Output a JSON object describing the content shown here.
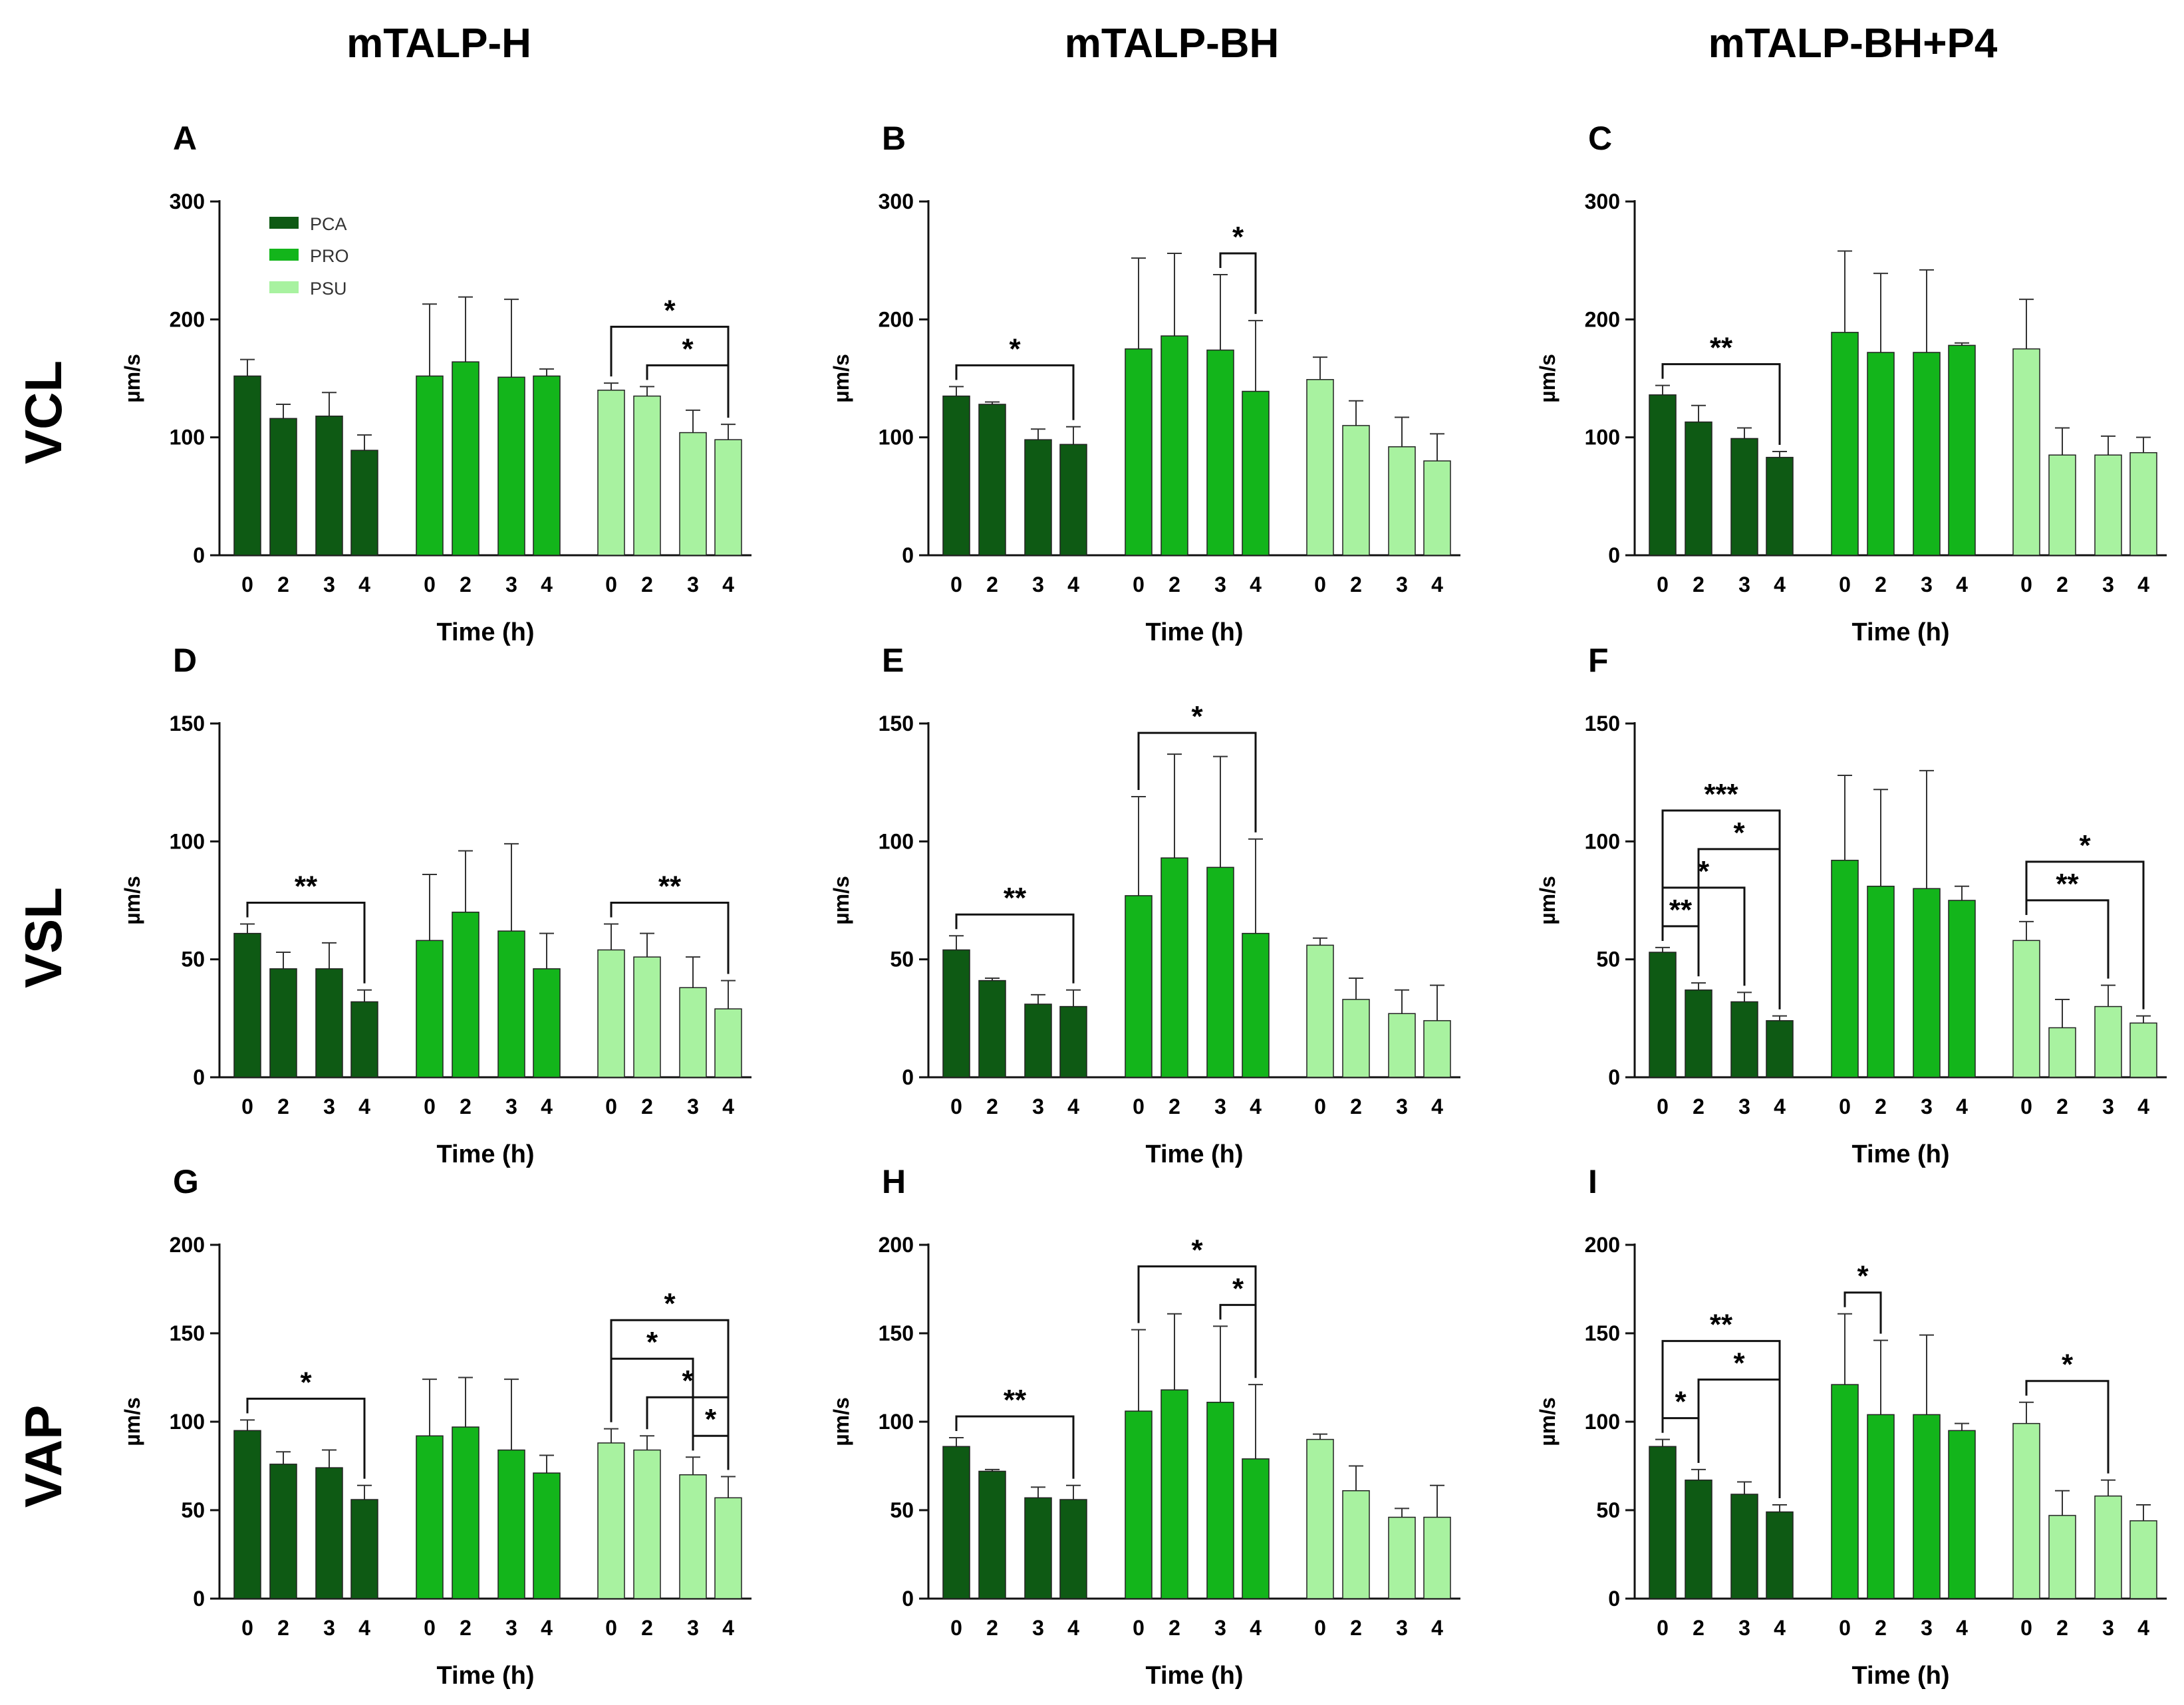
{
  "colors": {
    "PCA": "#0e5a14",
    "PRO": "#13b51b",
    "PSU": "#a8f2a0"
  },
  "column_titles": [
    "mTALP-H",
    "mTALP-BH",
    "mTALP-BH+P4"
  ],
  "row_labels": [
    "VCL",
    "VSL",
    "VAP"
  ],
  "legend": [
    "PCA",
    "PRO",
    "PSU"
  ],
  "chart_data": [
    {
      "panel": "A",
      "type": "bar",
      "metric": "VCL",
      "medium": "mTALP-H",
      "ylabel": "µm/s",
      "xlabel": "Time (h)",
      "ylim": [
        0,
        300
      ],
      "yticks": [
        0,
        100,
        200,
        300
      ],
      "categories": [
        "0",
        "2",
        "3",
        "4"
      ],
      "series": [
        {
          "name": "PCA",
          "values": [
            152,
            116,
            118,
            89
          ],
          "errors": [
            14,
            12,
            20,
            13
          ]
        },
        {
          "name": "PRO",
          "values": [
            152,
            164,
            151,
            152
          ],
          "errors": [
            61,
            55,
            66,
            6
          ]
        },
        {
          "name": "PSU",
          "values": [
            140,
            135,
            104,
            98
          ],
          "errors": [
            6,
            8,
            19,
            13
          ]
        }
      ],
      "significance": [
        {
          "series": "PSU",
          "from": "0",
          "to": "4",
          "label": "*"
        },
        {
          "series": "PSU",
          "from": "2",
          "to": "4",
          "label": "*"
        }
      ]
    },
    {
      "panel": "B",
      "type": "bar",
      "metric": "VCL",
      "medium": "mTALP-BH",
      "ylabel": "µm/s",
      "xlabel": "Time (h)",
      "ylim": [
        0,
        300
      ],
      "yticks": [
        0,
        100,
        200,
        300
      ],
      "categories": [
        "0",
        "2",
        "3",
        "4"
      ],
      "series": [
        {
          "name": "PCA",
          "values": [
            135,
            128,
            98,
            94
          ],
          "errors": [
            8,
            2,
            9,
            15
          ]
        },
        {
          "name": "PRO",
          "values": [
            175,
            186,
            174,
            139
          ],
          "errors": [
            77,
            70,
            64,
            60
          ]
        },
        {
          "name": "PSU",
          "values": [
            149,
            110,
            92,
            80
          ],
          "errors": [
            19,
            21,
            25,
            23
          ]
        }
      ],
      "significance": [
        {
          "series": "PCA",
          "from": "0",
          "to": "4",
          "label": "*"
        },
        {
          "series": "PRO",
          "from": "3",
          "to": "4",
          "label": "*"
        }
      ]
    },
    {
      "panel": "C",
      "type": "bar",
      "metric": "VCL",
      "medium": "mTALP-BH+P4",
      "ylabel": "µm/s",
      "xlabel": "Time (h)",
      "ylim": [
        0,
        300
      ],
      "yticks": [
        0,
        100,
        200,
        300
      ],
      "categories": [
        "0",
        "2",
        "3",
        "4"
      ],
      "series": [
        {
          "name": "PCA",
          "values": [
            136,
            113,
            99,
            83
          ],
          "errors": [
            8,
            14,
            9,
            5
          ]
        },
        {
          "name": "PRO",
          "values": [
            189,
            172,
            172,
            178
          ],
          "errors": [
            69,
            67,
            70,
            2
          ]
        },
        {
          "name": "PSU",
          "values": [
            175,
            85,
            85,
            87
          ],
          "errors": [
            42,
            23,
            16,
            13
          ]
        }
      ],
      "significance": [
        {
          "series": "PCA",
          "from": "0",
          "to": "4",
          "label": "**"
        }
      ]
    },
    {
      "panel": "D",
      "type": "bar",
      "metric": "VSL",
      "medium": "mTALP-H",
      "ylabel": "µm/s",
      "xlabel": "Time (h)",
      "ylim": [
        0,
        150
      ],
      "yticks": [
        0,
        50,
        100,
        150
      ],
      "categories": [
        "0",
        "2",
        "3",
        "4"
      ],
      "series": [
        {
          "name": "PCA",
          "values": [
            61,
            46,
            46,
            32
          ],
          "errors": [
            4,
            7,
            11,
            5
          ]
        },
        {
          "name": "PRO",
          "values": [
            58,
            70,
            62,
            46
          ],
          "errors": [
            28,
            26,
            37,
            15
          ]
        },
        {
          "name": "PSU",
          "values": [
            54,
            51,
            38,
            29
          ],
          "errors": [
            11,
            10,
            13,
            12
          ]
        }
      ],
      "significance": [
        {
          "series": "PCA",
          "from": "0",
          "to": "4",
          "label": "**"
        },
        {
          "series": "PSU",
          "from": "0",
          "to": "4",
          "label": "**"
        }
      ]
    },
    {
      "panel": "E",
      "type": "bar",
      "metric": "VSL",
      "medium": "mTALP-BH",
      "ylabel": "µm/s",
      "xlabel": "Time (h)",
      "ylim": [
        0,
        150
      ],
      "yticks": [
        0,
        50,
        100,
        150
      ],
      "categories": [
        "0",
        "2",
        "3",
        "4"
      ],
      "series": [
        {
          "name": "PCA",
          "values": [
            54,
            41,
            31,
            30
          ],
          "errors": [
            6,
            1,
            4,
            7
          ]
        },
        {
          "name": "PRO",
          "values": [
            77,
            93,
            89,
            61
          ],
          "errors": [
            42,
            44,
            47,
            40
          ]
        },
        {
          "name": "PSU",
          "values": [
            56,
            33,
            27,
            24
          ],
          "errors": [
            3,
            9,
            10,
            15
          ]
        }
      ],
      "significance": [
        {
          "series": "PCA",
          "from": "0",
          "to": "4",
          "label": "**"
        },
        {
          "series": "PRO",
          "from": "0",
          "to": "4",
          "label": "*"
        }
      ]
    },
    {
      "panel": "F",
      "type": "bar",
      "metric": "VSL",
      "medium": "mTALP-BH+P4",
      "ylabel": "µm/s",
      "xlabel": "Time (h)",
      "ylim": [
        0,
        150
      ],
      "yticks": [
        0,
        50,
        100,
        150
      ],
      "categories": [
        "0",
        "2",
        "3",
        "4"
      ],
      "series": [
        {
          "name": "PCA",
          "values": [
            53,
            37,
            32,
            24
          ],
          "errors": [
            2,
            3,
            4,
            2
          ]
        },
        {
          "name": "PRO",
          "values": [
            92,
            81,
            80,
            75
          ],
          "errors": [
            36,
            41,
            50,
            6
          ]
        },
        {
          "name": "PSU",
          "values": [
            58,
            21,
            30,
            23
          ],
          "errors": [
            8,
            12,
            9,
            3
          ]
        }
      ],
      "significance": [
        {
          "series": "PCA",
          "from": "0",
          "to": "4",
          "label": "***"
        },
        {
          "series": "PCA",
          "from": "0",
          "to": "3",
          "label": "*"
        },
        {
          "series": "PCA",
          "from": "0",
          "to": "2",
          "label": "**"
        },
        {
          "series": "PCA",
          "from": "2",
          "to": "4",
          "label": "*"
        },
        {
          "series": "PSU",
          "from": "0",
          "to": "4",
          "label": "*"
        },
        {
          "series": "PSU",
          "from": "0",
          "to": "3",
          "label": "**"
        }
      ]
    },
    {
      "panel": "G",
      "type": "bar",
      "metric": "VAP",
      "medium": "mTALP-H",
      "ylabel": "µm/s",
      "xlabel": "Time (h)",
      "ylim": [
        0,
        200
      ],
      "yticks": [
        0,
        50,
        100,
        150,
        200
      ],
      "categories": [
        "0",
        "2",
        "3",
        "4"
      ],
      "series": [
        {
          "name": "PCA",
          "values": [
            95,
            76,
            74,
            56
          ],
          "errors": [
            6,
            7,
            10,
            8
          ]
        },
        {
          "name": "PRO",
          "values": [
            92,
            97,
            84,
            71
          ],
          "errors": [
            32,
            28,
            40,
            10
          ]
        },
        {
          "name": "PSU",
          "values": [
            88,
            84,
            70,
            57
          ],
          "errors": [
            8,
            8,
            10,
            12
          ]
        }
      ],
      "significance": [
        {
          "series": "PCA",
          "from": "0",
          "to": "4",
          "label": "*"
        },
        {
          "series": "PSU",
          "from": "0",
          "to": "4",
          "label": "*"
        },
        {
          "series": "PSU",
          "from": "2",
          "to": "4",
          "label": "*"
        },
        {
          "series": "PSU",
          "from": "0",
          "to": "3",
          "label": "*"
        },
        {
          "series": "PSU",
          "from": "3",
          "to": "4",
          "label": "*"
        }
      ]
    },
    {
      "panel": "H",
      "type": "bar",
      "metric": "VAP",
      "medium": "mTALP-BH",
      "ylabel": "µm/s",
      "xlabel": "Time (h)",
      "ylim": [
        0,
        200
      ],
      "yticks": [
        0,
        50,
        100,
        150,
        200
      ],
      "categories": [
        "0",
        "2",
        "3",
        "4"
      ],
      "series": [
        {
          "name": "PCA",
          "values": [
            86,
            72,
            57,
            56
          ],
          "errors": [
            5,
            1,
            6,
            8
          ]
        },
        {
          "name": "PRO",
          "values": [
            106,
            118,
            111,
            79
          ],
          "errors": [
            46,
            43,
            43,
            42
          ]
        },
        {
          "name": "PSU",
          "values": [
            90,
            61,
            46,
            46
          ],
          "errors": [
            3,
            14,
            5,
            18
          ]
        }
      ],
      "significance": [
        {
          "series": "PCA",
          "from": "0",
          "to": "4",
          "label": "**"
        },
        {
          "series": "PRO",
          "from": "0",
          "to": "4",
          "label": "*"
        },
        {
          "series": "PRO",
          "from": "3",
          "to": "4",
          "label": "*"
        }
      ]
    },
    {
      "panel": "I",
      "type": "bar",
      "metric": "VAP",
      "medium": "mTALP-BH+P4",
      "ylabel": "µm/s",
      "xlabel": "Time (h)",
      "ylim": [
        0,
        200
      ],
      "yticks": [
        0,
        50,
        100,
        150,
        200
      ],
      "categories": [
        "0",
        "2",
        "3",
        "4"
      ],
      "series": [
        {
          "name": "PCA",
          "values": [
            86,
            67,
            59,
            49
          ],
          "errors": [
            4,
            6,
            7,
            4
          ]
        },
        {
          "name": "PRO",
          "values": [
            121,
            104,
            104,
            95
          ],
          "errors": [
            40,
            42,
            45,
            4
          ]
        },
        {
          "name": "PSU",
          "values": [
            99,
            47,
            58,
            44
          ],
          "errors": [
            12,
            14,
            9,
            9
          ]
        }
      ],
      "significance": [
        {
          "series": "PCA",
          "from": "0",
          "to": "4",
          "label": "**"
        },
        {
          "series": "PCA",
          "from": "2",
          "to": "4",
          "label": "*"
        },
        {
          "series": "PCA",
          "from": "0",
          "to": "2",
          "label": "*"
        },
        {
          "series": "PRO",
          "from": "0",
          "to": "2",
          "label": "*"
        },
        {
          "series": "PSU",
          "from": "0",
          "to": "3",
          "label": "*"
        }
      ]
    }
  ]
}
